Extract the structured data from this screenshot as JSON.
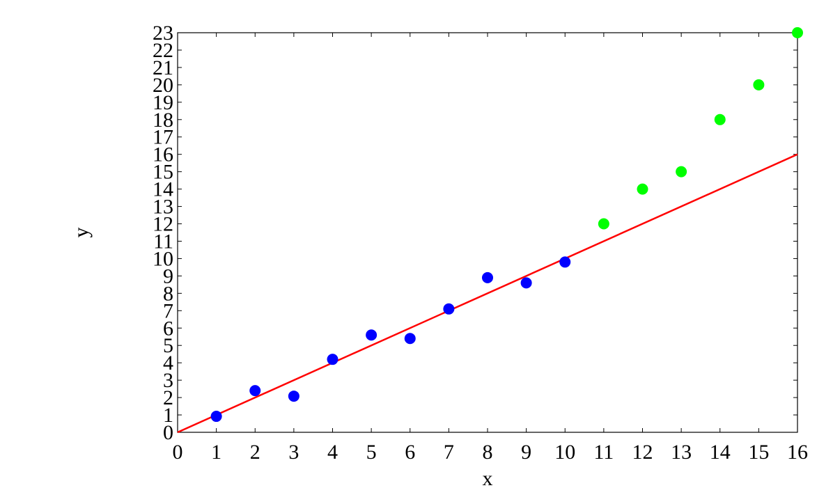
{
  "chart_data": {
    "type": "scatter",
    "x_label": "x",
    "y_label": "y",
    "xlim": [
      0,
      16
    ],
    "ylim": [
      0,
      23
    ],
    "xticks": [
      0,
      1,
      2,
      3,
      4,
      5,
      6,
      7,
      8,
      9,
      10,
      11,
      12,
      13,
      14,
      15,
      16
    ],
    "yticks": [
      0,
      1,
      2,
      3,
      4,
      5,
      6,
      7,
      8,
      9,
      10,
      11,
      12,
      13,
      14,
      15,
      16,
      17,
      18,
      19,
      20,
      21,
      22,
      23
    ],
    "series": [
      {
        "type": "scatter",
        "color": "#0000ff",
        "x": [
          1,
          2,
          3,
          4,
          5,
          6,
          7,
          8,
          9,
          10
        ],
        "values": [
          0.92,
          2.4,
          2.08,
          4.2,
          5.6,
          5.4,
          7.1,
          8.9,
          8.6,
          9.8
        ]
      },
      {
        "type": "scatter",
        "color": "#00ff00",
        "x": [
          11,
          12,
          13,
          14,
          15,
          16
        ],
        "values": [
          12,
          14,
          15,
          18,
          20,
          23
        ]
      },
      {
        "type": "line",
        "color": "#ff0000",
        "x": [
          0,
          16
        ],
        "values": [
          0,
          16
        ]
      }
    ]
  }
}
